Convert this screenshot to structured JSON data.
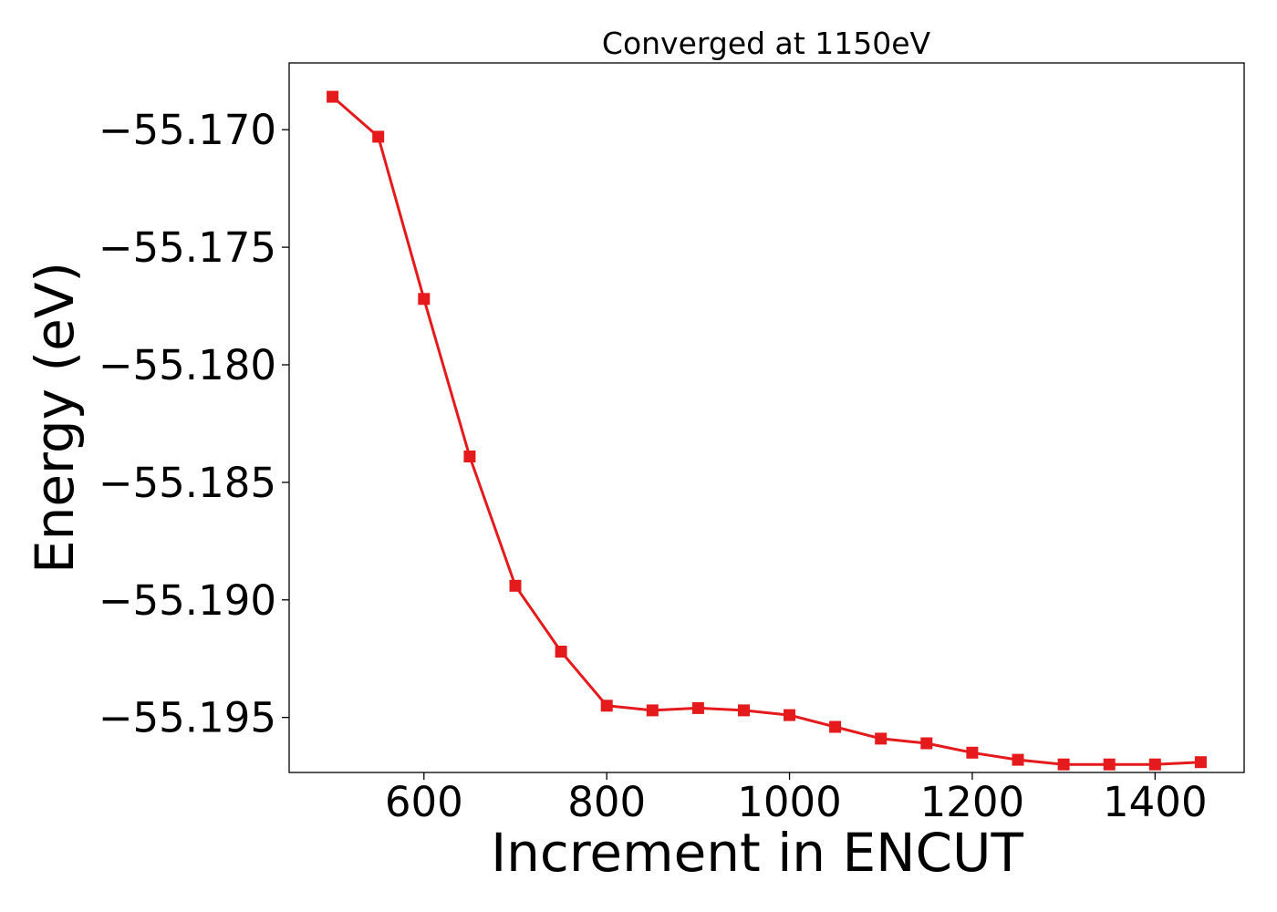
{
  "chart_data": {
    "type": "line",
    "title": "Converged at 1150eV",
    "xlabel": "Increment in ENCUT",
    "ylabel": "Energy (eV)",
    "x": [
      500,
      550,
      600,
      650,
      700,
      750,
      800,
      850,
      900,
      950,
      1000,
      1050,
      1100,
      1150,
      1200,
      1250,
      1300,
      1350,
      1400,
      1450
    ],
    "series": [
      {
        "values": [
          -55.1686,
          -55.1703,
          -55.1772,
          -55.1839,
          -55.1894,
          -55.1922,
          -55.1945,
          -55.1947,
          -55.1946,
          -55.1947,
          -55.1949,
          -55.1954,
          -55.1959,
          -55.1961,
          -55.1965,
          -55.1968,
          -55.197,
          -55.197,
          -55.197,
          -55.1969
        ],
        "color": "#e41a1c",
        "marker": "square"
      }
    ],
    "xlim": [
      452.5,
      1497.5
    ],
    "ylim": [
      -55.19734,
      -55.16716
    ],
    "xticks": [
      600,
      800,
      1000,
      1200,
      1400
    ],
    "xtick_labels": [
      "600",
      "800",
      "1000",
      "1200",
      "1400"
    ],
    "yticks": [
      -55.17,
      -55.175,
      -55.18,
      -55.185,
      -55.19,
      -55.195
    ],
    "ytick_labels": [
      "−55.170",
      "−55.175",
      "−55.180",
      "−55.185",
      "−55.190",
      "−55.195"
    ],
    "grid": false,
    "legend": "none"
  }
}
